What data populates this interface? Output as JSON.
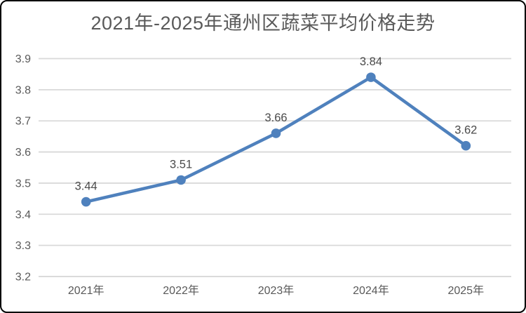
{
  "chart_data": {
    "type": "line",
    "title": "2021年-2025年通州区蔬菜平均价格走势",
    "categories": [
      "2021年",
      "2022年",
      "2023年",
      "2024年",
      "2025年"
    ],
    "values": [
      3.44,
      3.51,
      3.66,
      3.84,
      3.62
    ],
    "data_labels": [
      "3.44",
      "3.51",
      "3.66",
      "3.84",
      "3.62"
    ],
    "ylim": [
      3.2,
      3.9
    ],
    "yticks": [
      3.2,
      3.3,
      3.4,
      3.5,
      3.6,
      3.7,
      3.8,
      3.9
    ],
    "ytick_labels": [
      "3.2",
      "3.3",
      "3.4",
      "3.5",
      "3.6",
      "3.7",
      "3.8",
      "3.9"
    ],
    "xlabel": "",
    "ylabel": "",
    "grid": true,
    "legend": "none",
    "colors": {
      "line": "#4F81BD",
      "marker": "#4F81BD",
      "gridline": "#D9D9D9",
      "axis_line": "#D4D4D4",
      "title_text": "#595959",
      "tick_text": "#595959",
      "data_label_text": "#4A4A4A",
      "frame_border": "#000000",
      "background": "#FFFFFF"
    }
  }
}
